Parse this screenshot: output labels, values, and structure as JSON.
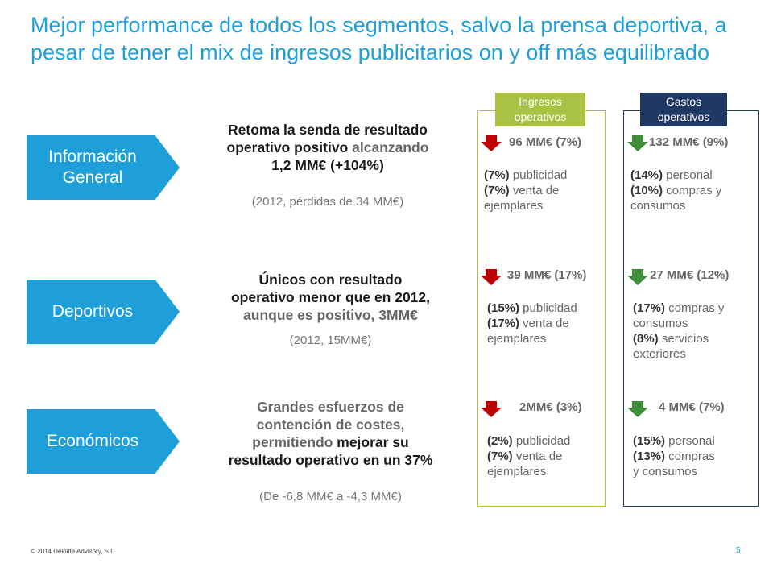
{
  "title": "Mejor performance de todos los segmentos, salvo la prensa deportiva, a pesar de tener el mix de ingresos publicitarios on y off más equilibrado",
  "columns": {
    "ingresos": "Ingresos operativos",
    "gastos": "Gastos operativos"
  },
  "colors": {
    "accent_blue": "#1e9fd9",
    "red_arrow": "#c00000",
    "green_arrow": "#3f8f3a",
    "olive": "#a9c243",
    "navy": "#1f3864"
  },
  "segments": [
    {
      "name": "Información General",
      "desc_line1": "Retoma la senda de resultado",
      "desc_line2a": "operativo positivo",
      "desc_line2b": " alcanzando",
      "desc_line3": "1,2 MM€ (+104%)",
      "sub": "(2012, pérdidas de 34 MM€)",
      "ingresos": {
        "amount": "96 MM€ (7%)",
        "arrow": "down-arrow-icon",
        "lines": [
          [
            "(7%)",
            " publicidad"
          ],
          [
            "(7%)",
            " venta de"
          ],
          [
            "",
            "ejemplares"
          ]
        ]
      },
      "gastos": {
        "amount": "132 MM€ (9%)",
        "arrow": "down-arrow-icon",
        "lines": [
          [
            "(14%)",
            " personal"
          ],
          [
            "(10%)",
            " compras y"
          ],
          [
            "",
            "consumos"
          ]
        ]
      }
    },
    {
      "name": "Deportivos",
      "desc_line1": "Únicos con resultado",
      "desc_line2a": "operativo menor que en 2012,",
      "desc_line2b": "",
      "desc_line3": "aunque es positivo, 3MM€",
      "sub": "(2012, 15MM€)",
      "ingresos": {
        "amount": "39 MM€ (17%)",
        "arrow": "down-arrow-icon",
        "lines": [
          [
            "(15%)",
            " publicidad"
          ],
          [
            "(17%)",
            " venta de"
          ],
          [
            "",
            "ejemplares"
          ]
        ]
      },
      "gastos": {
        "amount": "27 MM€ (12%)",
        "arrow": "down-arrow-icon",
        "lines": [
          [
            "(17%)",
            " compras y"
          ],
          [
            "",
            "consumos"
          ],
          [
            "(8%)",
            " servicios"
          ],
          [
            "",
            "exteriores"
          ]
        ]
      }
    },
    {
      "name": "Económicos",
      "desc_line1": "Grandes esfuerzos de",
      "desc_line2a": "contención de costes,",
      "desc_line2b": "",
      "desc_line3a": "permitiendo ",
      "desc_line3b": "mejorar su",
      "desc_line4": "resultado operativo en un 37%",
      "sub": "(De -6,8 MM€ a -4,3 MM€)",
      "ingresos": {
        "amount": "2MM€ (3%)",
        "arrow": "down-arrow-icon",
        "lines": [
          [
            "(2%)",
            " publicidad"
          ],
          [
            "(7%)",
            " venta de"
          ],
          [
            "",
            "ejemplares"
          ]
        ]
      },
      "gastos": {
        "amount": "4 MM€ (7%)",
        "arrow": "down-arrow-icon",
        "lines": [
          [
            "(15%)",
            " personal"
          ],
          [
            "(13%)",
            " compras"
          ],
          [
            "",
            "y consumos"
          ]
        ]
      }
    }
  ],
  "footer": "© 2014 Deloitte Advisory, S.L.",
  "page_number": "5"
}
